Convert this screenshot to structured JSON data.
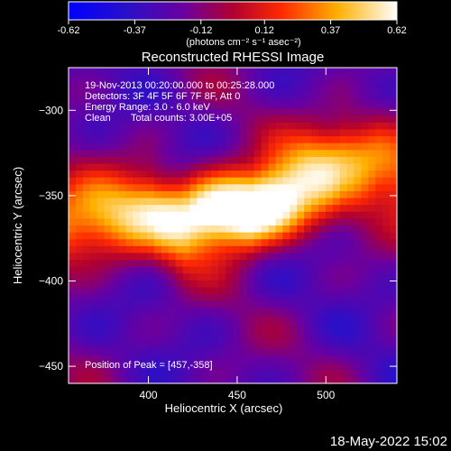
{
  "colorbar": {
    "ticks": [
      "-0.62",
      "-0.37",
      "-0.12",
      "0.12",
      "0.37",
      "0.62"
    ],
    "tick_values": [
      -0.62,
      -0.37,
      -0.12,
      0.12,
      0.37,
      0.62
    ],
    "unit_label": "(photons cm⁻² s⁻¹ asec⁻²)",
    "range": [
      -0.62,
      0.62
    ],
    "colormap": "rhessi-blue-purple-red-yellow-white"
  },
  "title": "Reconstructed RHESSI Image",
  "info": {
    "line1": "19-Nov-2013 00:20:00.000 to 00:25:28.000",
    "line2": "Detectors: 3F 4F 5F 6F 7F 8F, Att 0",
    "line3": "Energy Range: 3.0 - 6.0 keV",
    "line4_left": "Clean",
    "line4_right": "Total counts: 3.00E+05",
    "peak": "Position of Peak = [457,-358]"
  },
  "footer_date": "18-May-2022 15:02",
  "chart_data": {
    "type": "heatmap",
    "title": "Reconstructed RHESSI Image",
    "xlabel": "Heliocentric X (arcsec)",
    "ylabel": "Heliocentric Y (arcsec)",
    "xlim": [
      355,
      540
    ],
    "ylim": [
      -460,
      -275
    ],
    "x_ticks": [
      400,
      450,
      500
    ],
    "x_tick_labels": [
      "400",
      "450",
      "500"
    ],
    "y_ticks": [
      -300,
      -350,
      -400,
      -450
    ],
    "y_tick_labels": [
      "−300",
      "−350",
      "−400",
      "−450"
    ],
    "peak": {
      "x": 457,
      "y": -358
    },
    "value_range": [
      -0.62,
      0.62
    ],
    "ridge": [
      [
        355,
        -368
      ],
      [
        380,
        -362
      ],
      [
        400,
        -358
      ],
      [
        420,
        -368
      ],
      [
        440,
        -362
      ],
      [
        457,
        -358
      ],
      [
        470,
        -348
      ],
      [
        490,
        -335
      ],
      [
        510,
        -327
      ],
      [
        530,
        -330
      ],
      [
        540,
        -335
      ]
    ]
  }
}
